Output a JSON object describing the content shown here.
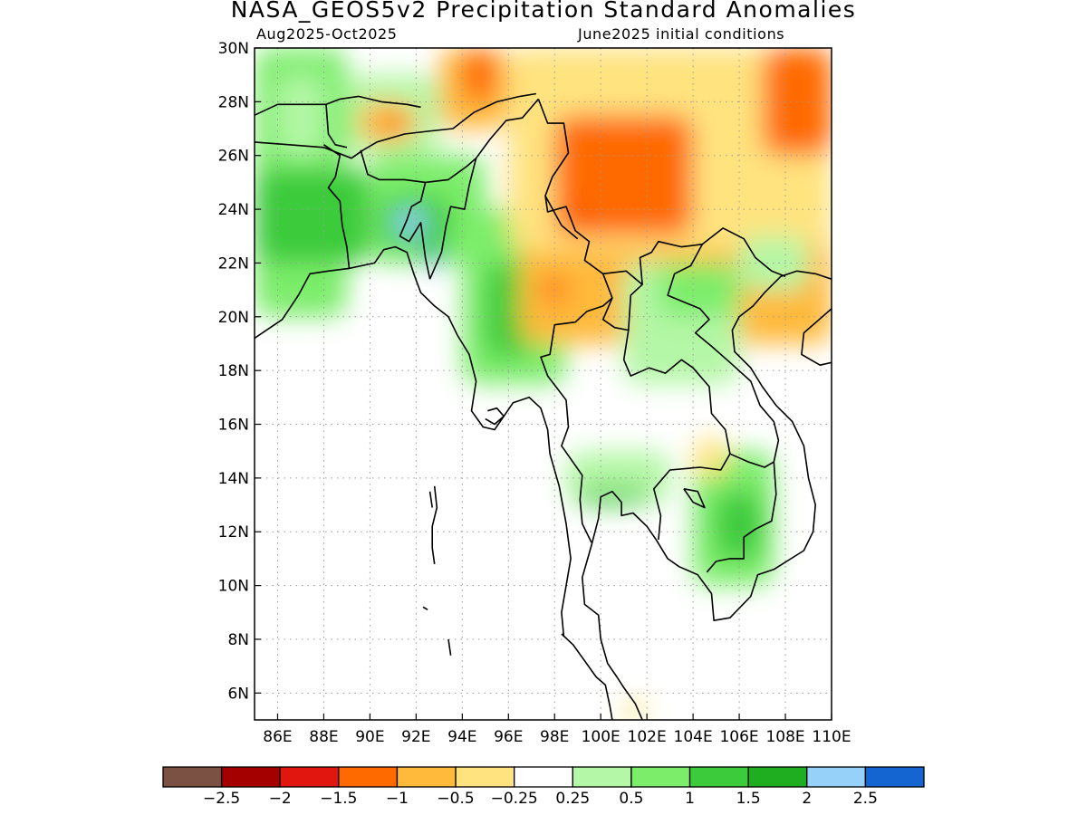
{
  "title": "NASA_GEOS5v2 Precipitation Standard Anomalies",
  "subtitle_left": "Aug2025-Oct2025",
  "subtitle_right": "June2025 initial conditions",
  "map": {
    "lon_range": [
      85,
      110
    ],
    "lat_range": [
      5,
      30
    ],
    "x_ticks": [
      "86E",
      "88E",
      "90E",
      "92E",
      "94E",
      "96E",
      "98E",
      "100E",
      "102E",
      "104E",
      "106E",
      "108E",
      "110E"
    ],
    "y_ticks": [
      "6N",
      "8N",
      "10N",
      "12N",
      "14N",
      "16N",
      "18N",
      "20N",
      "22N",
      "24N",
      "26N",
      "28N",
      "30N"
    ],
    "grid": true,
    "grid_style": "dotted"
  },
  "colorbar": {
    "colors": [
      "#7b5144",
      "#a50000",
      "#e0160f",
      "#ff6a00",
      "#ffb93b",
      "#ffe37f",
      "#ffffff",
      "#b4f7a6",
      "#7ced6a",
      "#3bcb3b",
      "#1fae1f",
      "#96d1fa",
      "#1464d2"
    ],
    "labels": [
      "-2.5",
      "-2",
      "-1.5",
      "-1",
      "-0.5",
      "-0.25",
      "0.25",
      "0.5",
      "1",
      "1.5",
      "2",
      "2.5"
    ]
  },
  "regions": [
    {
      "color": "#7ced6a",
      "lat": [
        20,
        30
      ],
      "lon": [
        85,
        89
      ]
    },
    {
      "color": "#3bcb3b",
      "lat": [
        22,
        25.5
      ],
      "lon": [
        85,
        90
      ]
    },
    {
      "color": "#b4f7a6",
      "lat": [
        26,
        29
      ],
      "lon": [
        86,
        88
      ]
    },
    {
      "color": "#7ced6a",
      "lat": [
        22,
        26
      ],
      "lon": [
        90,
        95
      ]
    },
    {
      "color": "#3bcb3b",
      "lat": [
        22.5,
        24.5
      ],
      "lon": [
        90.5,
        93.5
      ]
    },
    {
      "color": "#96d1fa",
      "lat": [
        23,
        24
      ],
      "lon": [
        91,
        92.5
      ]
    },
    {
      "color": "#1464d2",
      "lat": [
        21.8,
        22.6
      ],
      "lon": [
        92.5,
        93
      ]
    },
    {
      "color": "#7ced6a",
      "lat": [
        17.5,
        24
      ],
      "lon": [
        94,
        98.5
      ]
    },
    {
      "color": "#3bcb3b",
      "lat": [
        18.5,
        22
      ],
      "lon": [
        95,
        97
      ]
    },
    {
      "color": "#b4f7a6",
      "lat": [
        26,
        29
      ],
      "lon": [
        89,
        93
      ]
    },
    {
      "color": "#ffb93b",
      "lat": [
        26.5,
        28
      ],
      "lon": [
        89.5,
        92
      ]
    },
    {
      "color": "#ff6a00",
      "lat": [
        26.8,
        27.5
      ],
      "lon": [
        90.5,
        91.5
      ]
    },
    {
      "color": "#ffb93b",
      "lat": [
        27,
        30
      ],
      "lon": [
        93,
        96
      ]
    },
    {
      "color": "#ff6a00",
      "lat": [
        28,
        30
      ],
      "lon": [
        94,
        95.5
      ]
    },
    {
      "color": "#ffb93b",
      "lat": [
        19,
        30
      ],
      "lon": [
        96.5,
        110
      ]
    },
    {
      "color": "#ffe37f",
      "lat": [
        22.5,
        30
      ],
      "lon": [
        96,
        110
      ]
    },
    {
      "color": "#ff6a00",
      "lat": [
        23,
        27.5
      ],
      "lon": [
        98,
        104
      ]
    },
    {
      "color": "#ff6a00",
      "lat": [
        26,
        30
      ],
      "lon": [
        107,
        110
      ]
    },
    {
      "color": "#e0160f",
      "lat": [
        23.7,
        24.2
      ],
      "lon": [
        99,
        99.4
      ]
    },
    {
      "color": "#ff6a00",
      "lat": [
        20.5,
        21.5
      ],
      "lon": [
        97.5,
        98.5
      ]
    },
    {
      "color": "#b4f7a6",
      "lat": [
        17.5,
        22
      ],
      "lon": [
        101,
        106
      ]
    },
    {
      "color": "#7ced6a",
      "lat": [
        20,
        22
      ],
      "lon": [
        102.5,
        106
      ]
    },
    {
      "color": "#b4f7a6",
      "lat": [
        21,
        23
      ],
      "lon": [
        106,
        109
      ]
    },
    {
      "color": "#b4f7a6",
      "lat": [
        13,
        15
      ],
      "lon": [
        98.5,
        103
      ]
    },
    {
      "color": "#3bcb3b",
      "lat": [
        13,
        13.6
      ],
      "lon": [
        99,
        102
      ]
    },
    {
      "color": "#7ced6a",
      "lat": [
        10,
        15
      ],
      "lon": [
        104,
        107.5
      ]
    },
    {
      "color": "#3bcb3b",
      "lat": [
        11,
        13.5
      ],
      "lon": [
        105,
        107
      ]
    },
    {
      "color": "#ffe37f",
      "lat": [
        14,
        15.5
      ],
      "lon": [
        104,
        105.5
      ]
    },
    {
      "color": "#ffe37f",
      "lat": [
        5,
        5.7
      ],
      "lon": [
        101,
        102
      ]
    }
  ]
}
